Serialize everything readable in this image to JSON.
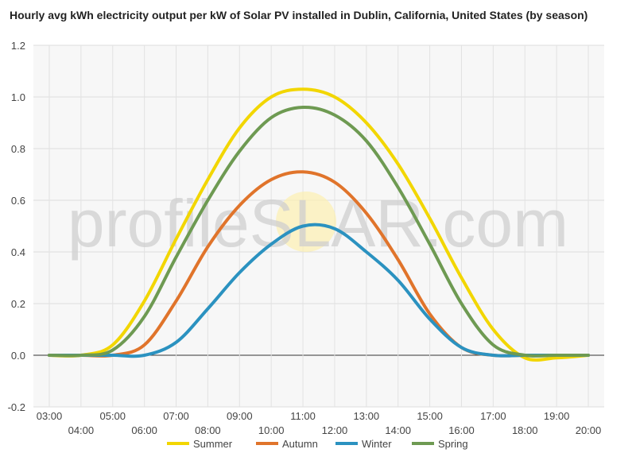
{
  "chart_data": {
    "type": "line",
    "title": "Hourly avg kWh electricity output per kW of Solar PV installed in Dublin, California, United States (by season)",
    "watermark": "profileSOLAR.com",
    "watermark_parts": [
      "profileS",
      "LAR.com"
    ],
    "x": [
      "03:00",
      "04:00",
      "05:00",
      "06:00",
      "07:00",
      "08:00",
      "09:00",
      "10:00",
      "11:00",
      "12:00",
      "13:00",
      "14:00",
      "15:00",
      "16:00",
      "17:00",
      "18:00",
      "19:00",
      "20:00"
    ],
    "x_tick_labels": [
      "03:00",
      "04:00",
      "05:00",
      "06:00",
      "07:00",
      "08:00",
      "09:00",
      "10:00",
      "11:00",
      "12:00",
      "13:00",
      "14:00",
      "15:00",
      "16:00",
      "17:00",
      "18:00",
      "19:00",
      "20:00"
    ],
    "y_tick_labels": [
      "1.2",
      "1.0",
      "0.8",
      "0.6",
      "0.4",
      "0.2",
      "0.0",
      "-0.2"
    ],
    "y_ticks": [
      1.2,
      1.0,
      0.8,
      0.6,
      0.4,
      0.2,
      0.0,
      -0.2
    ],
    "ylim": [
      -0.2,
      1.2
    ],
    "grid": true,
    "legend_position": "bottom",
    "series": [
      {
        "name": "Summer",
        "color": "#f2d600",
        "values": [
          0.0,
          0.0,
          0.04,
          0.21,
          0.45,
          0.68,
          0.88,
          1.0,
          1.03,
          1.0,
          0.9,
          0.74,
          0.53,
          0.3,
          0.1,
          -0.01,
          -0.01,
          0.0
        ]
      },
      {
        "name": "Autumn",
        "color": "#e0742b",
        "values": [
          0.0,
          0.0,
          0.0,
          0.04,
          0.21,
          0.42,
          0.58,
          0.68,
          0.71,
          0.67,
          0.55,
          0.37,
          0.16,
          0.03,
          0.0,
          0.0,
          0.0,
          0.0
        ]
      },
      {
        "name": "Winter",
        "color": "#2b92c0",
        "values": [
          0.0,
          0.0,
          0.0,
          0.0,
          0.05,
          0.18,
          0.32,
          0.43,
          0.5,
          0.49,
          0.4,
          0.29,
          0.14,
          0.03,
          0.0,
          0.0,
          0.0,
          0.0
        ]
      },
      {
        "name": "Spring",
        "color": "#6e9a52",
        "values": [
          0.0,
          0.0,
          0.02,
          0.15,
          0.38,
          0.6,
          0.79,
          0.92,
          0.96,
          0.93,
          0.83,
          0.65,
          0.43,
          0.2,
          0.04,
          0.0,
          0.0,
          0.0
        ]
      }
    ]
  }
}
